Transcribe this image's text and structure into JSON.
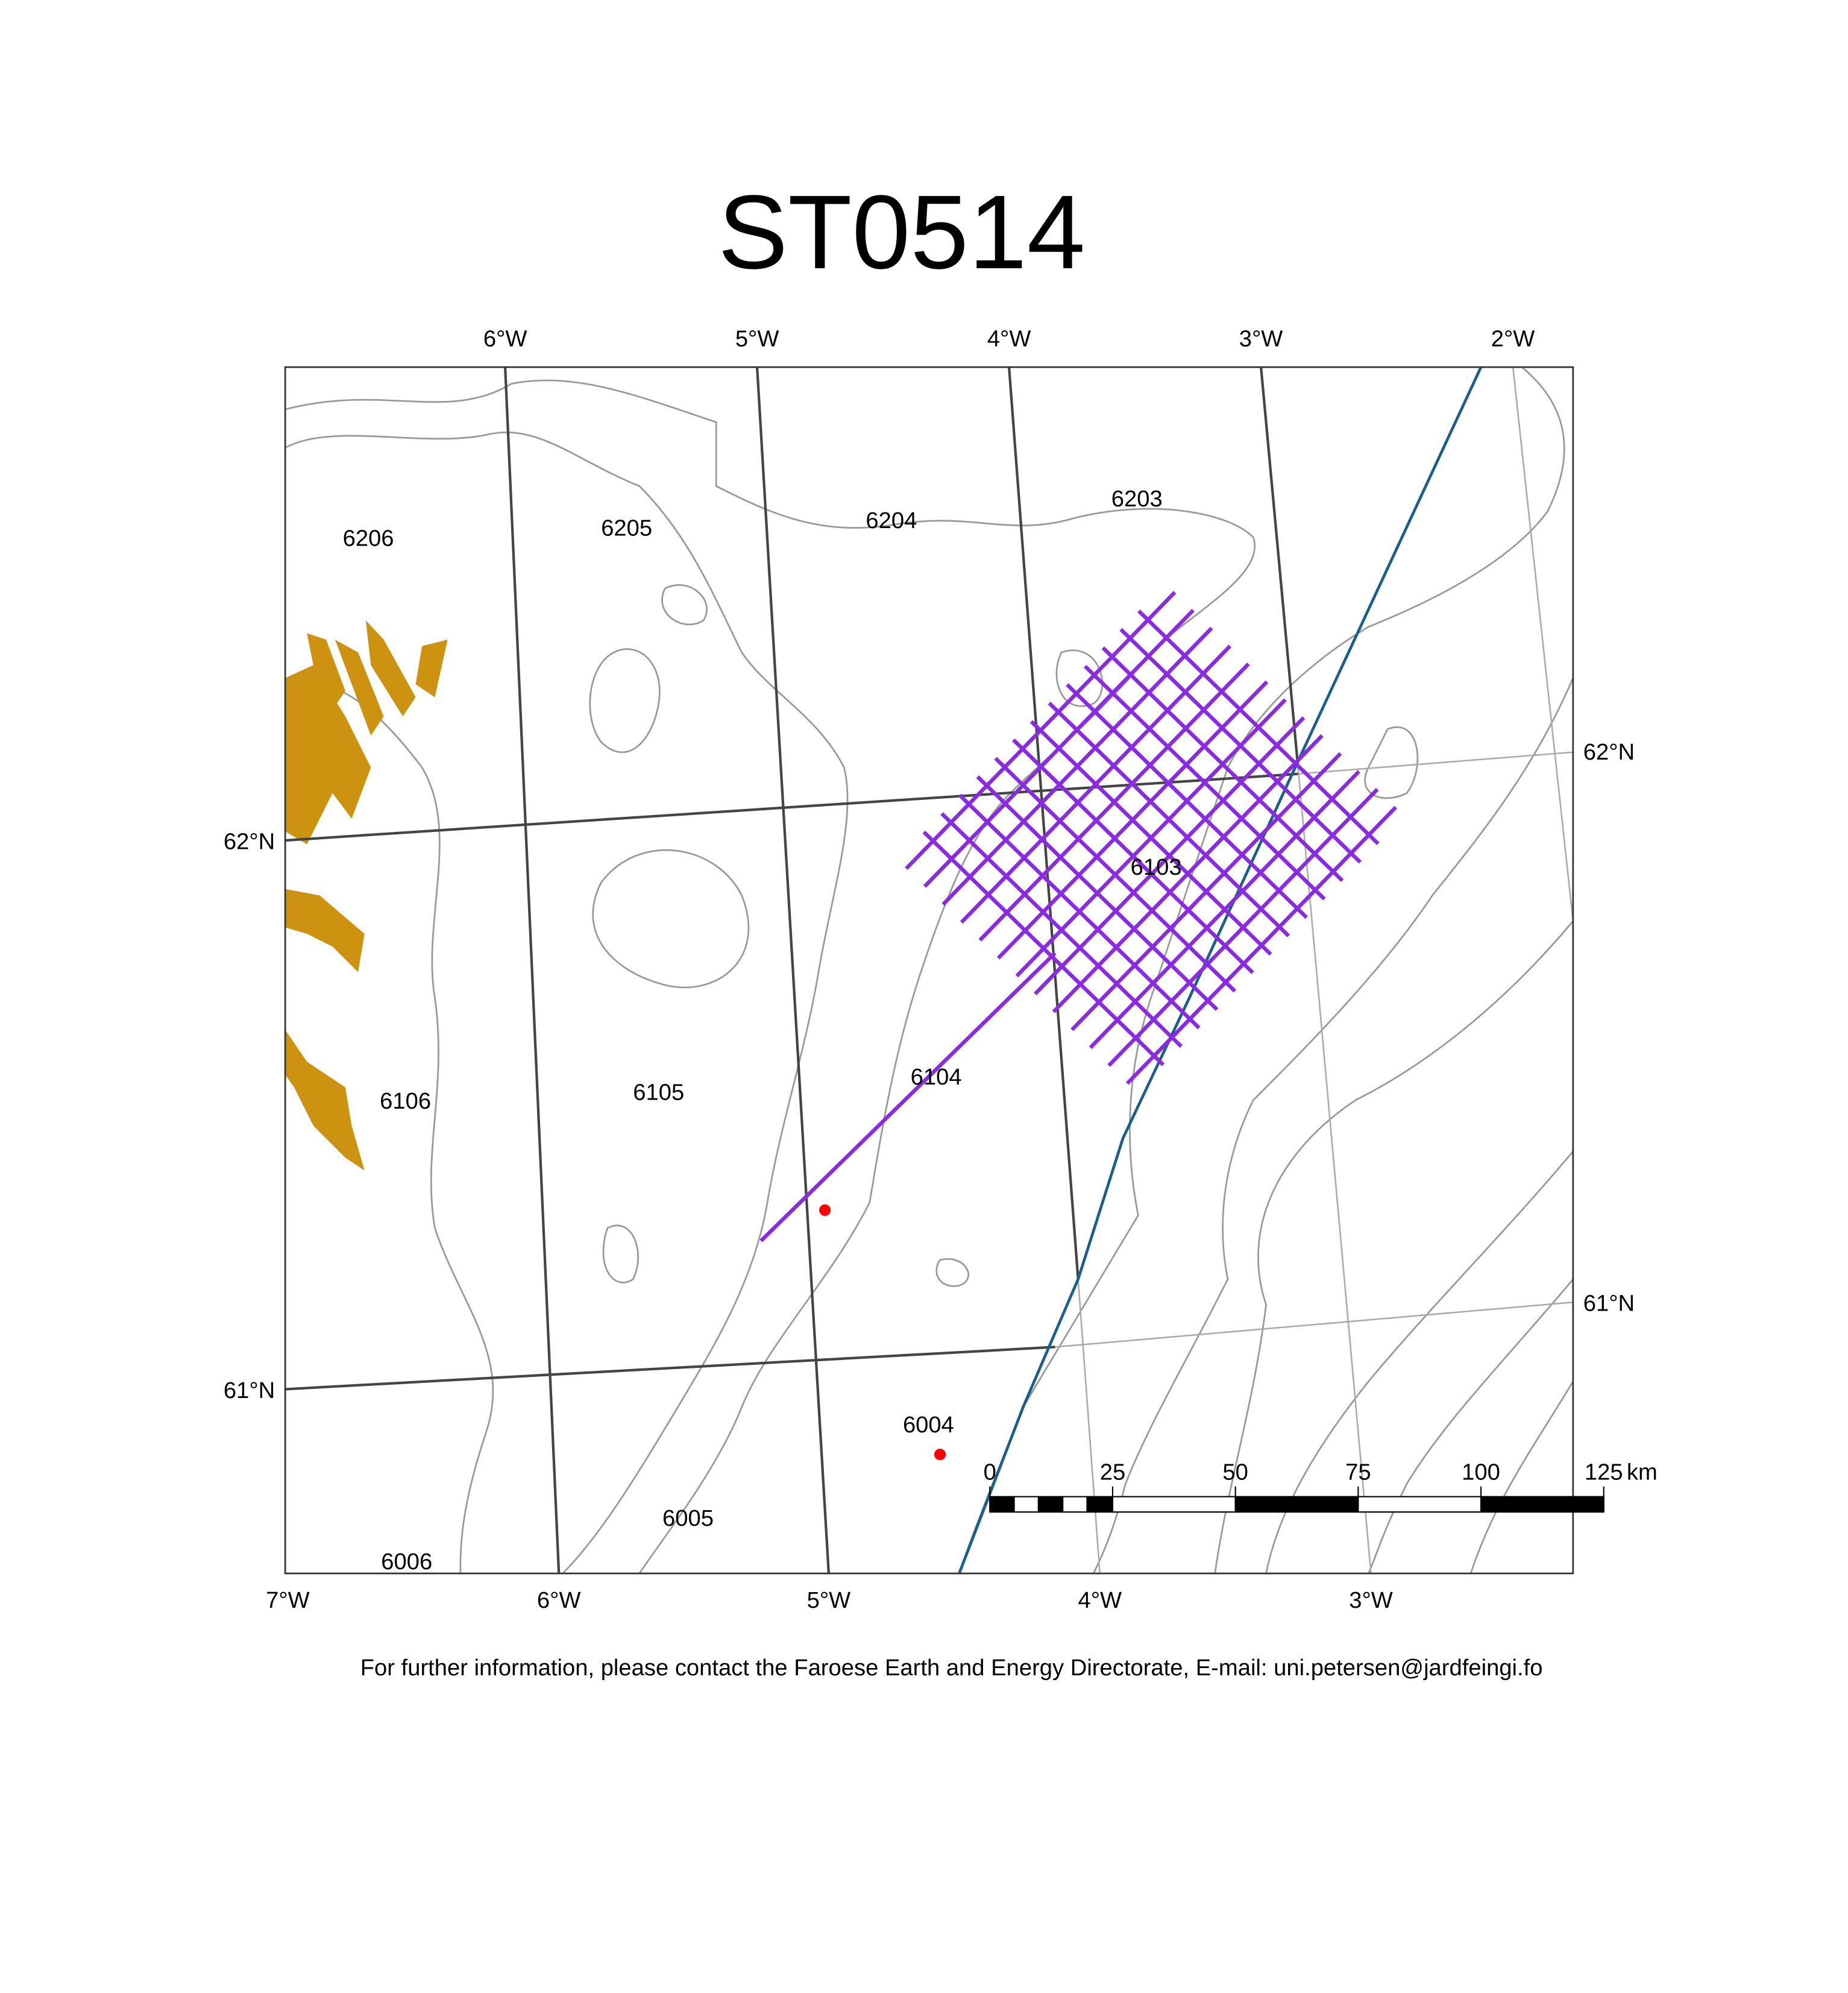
{
  "title": "ST0514",
  "graticule": {
    "top": [
      "6°W",
      "5°W",
      "4°W",
      "3°W",
      "2°W"
    ],
    "bottom": [
      "7°W",
      "6°W",
      "5°W",
      "4°W",
      "3°W"
    ],
    "left": [
      "62°N",
      "61°N"
    ],
    "right": [
      "62°N",
      "61°N"
    ]
  },
  "blocks": [
    "6206",
    "6205",
    "6204",
    "6203",
    "6106",
    "6105",
    "6104",
    "6103",
    "6006",
    "6005",
    "6004"
  ],
  "scale_bar": {
    "labels": [
      "0",
      "25",
      "50",
      "75",
      "100",
      "125"
    ],
    "unit": "km"
  },
  "footer": "For further information, please contact the Faroese Earth and Energy Directorate, E-mail: uni.petersen@jardfeingi.fo"
}
